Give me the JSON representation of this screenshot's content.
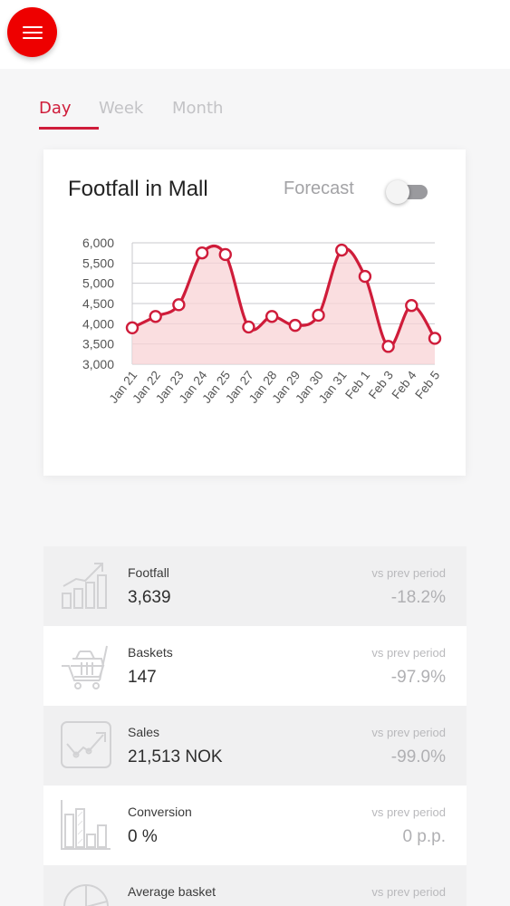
{
  "header": {
    "menu_icon": "hamburger-menu-icon",
    "accent_color": "#ee0000"
  },
  "tabs": [
    {
      "label": "Day",
      "active": true
    },
    {
      "label": "Week",
      "active": false
    },
    {
      "label": "Month",
      "active": false
    }
  ],
  "chart_card": {
    "title": "Footfall in Mall",
    "forecast_label": "Forecast",
    "forecast_enabled": false
  },
  "chart_data": {
    "type": "line",
    "title": "Footfall in Mall",
    "categories": [
      "Jan 21",
      "Jan 22",
      "Jan 23",
      "Jan 24",
      "Jan 25",
      "Jan 27",
      "Jan 28",
      "Jan 29",
      "Jan 30",
      "Jan 31",
      "Feb 1",
      "Feb 3",
      "Feb 4",
      "Feb 5"
    ],
    "values": [
      3900,
      4180,
      4470,
      5750,
      5710,
      3920,
      4180,
      3960,
      4210,
      5820,
      5170,
      3440,
      4450,
      3639
    ],
    "ylim": [
      3000,
      6000
    ],
    "yticks": [
      "3,000",
      "3,500",
      "4,000",
      "4,500",
      "5,000",
      "5,500",
      "6,000"
    ],
    "line_color": "#cf1c3a",
    "area_color": "#f8d3d6",
    "grid": true
  },
  "metrics": [
    {
      "label": "Footfall",
      "value": "3,639",
      "caption": "vs prev period",
      "change": "-18.2%",
      "icon": "footfall-growth-icon"
    },
    {
      "label": "Baskets",
      "value": "147",
      "caption": "vs prev period",
      "change": "-97.9%",
      "icon": "shopping-cart-icon"
    },
    {
      "label": "Sales",
      "value": "21,513 NOK",
      "caption": "vs prev period",
      "change": "-99.0%",
      "icon": "sales-trend-icon"
    },
    {
      "label": "Conversion",
      "value": "0 %",
      "caption": "vs prev period",
      "change": "0 p.p.",
      "icon": "conversion-bars-icon"
    },
    {
      "label": "Average basket",
      "value": "",
      "caption": "vs prev period",
      "change": "",
      "icon": "pie-chart-icon"
    }
  ]
}
